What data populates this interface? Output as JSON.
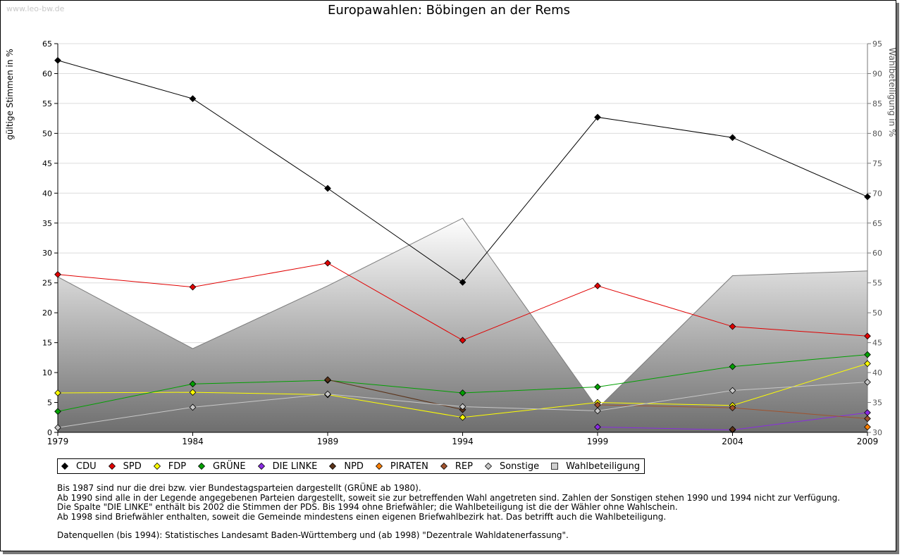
{
  "watermark": "www.leo-bw.de",
  "chart_data": {
    "type": "line",
    "title": "Europawahlen: Böbingen an der Rems",
    "ylabel": "gültige Stimmen in %",
    "y2label": "Wahlbeteiligung in %",
    "x": [
      "1979",
      "1984",
      "1989",
      "1994",
      "1999",
      "2004",
      "2009"
    ],
    "ylim": [
      0,
      65
    ],
    "y2lim": [
      30,
      95
    ],
    "yticks": [
      0,
      5,
      10,
      15,
      20,
      25,
      30,
      35,
      40,
      45,
      50,
      55,
      60,
      65
    ],
    "y2ticks": [
      30,
      35,
      40,
      45,
      50,
      55,
      60,
      65,
      70,
      75,
      80,
      85,
      90,
      95
    ],
    "grid": true,
    "legend_position": "bottom",
    "series": [
      {
        "name": "CDU",
        "color": "#000000",
        "values": [
          62.2,
          55.8,
          40.8,
          25.1,
          52.7,
          49.3,
          39.4
        ]
      },
      {
        "name": "SPD",
        "color": "#e00000",
        "values": [
          26.4,
          24.3,
          28.3,
          15.4,
          24.5,
          17.7,
          16.1
        ]
      },
      {
        "name": "FDP",
        "color": "#ffff00",
        "values": [
          6.6,
          6.7,
          6.3,
          2.5,
          5.0,
          4.5,
          11.5
        ]
      },
      {
        "name": "GRÜNE",
        "color": "#00a000",
        "values": [
          3.5,
          8.1,
          8.7,
          6.6,
          7.6,
          11.0,
          13.0
        ]
      },
      {
        "name": "DIE LINKE",
        "color": "#8a2be2",
        "values": [
          null,
          null,
          null,
          null,
          0.9,
          0.4,
          3.3
        ]
      },
      {
        "name": "NPD",
        "color": "#5a3218",
        "values": [
          null,
          null,
          8.8,
          3.8,
          null,
          0.5,
          null
        ]
      },
      {
        "name": "PIRATEN",
        "color": "#ff7f00",
        "values": [
          null,
          null,
          null,
          null,
          null,
          null,
          0.9
        ]
      },
      {
        "name": "REP",
        "color": "#a0522d",
        "values": [
          null,
          null,
          null,
          null,
          4.6,
          4.1,
          2.3
        ]
      },
      {
        "name": "Sonstige",
        "color": "#c8c8c8",
        "values": [
          0.8,
          4.2,
          6.4,
          4.3,
          3.6,
          7.0,
          8.4
        ]
      }
    ],
    "turnout": {
      "name": "Wahlbeteiligung",
      "values": [
        56.0,
        44.0,
        54.5,
        65.8,
        34.0,
        56.2,
        57.0
      ]
    }
  },
  "notes": [
    "Bis 1987 sind nur die drei bzw. vier Bundestagsparteien dargestellt (GRÜNE ab 1980).",
    "Ab 1990 sind alle in der Legende angegebenen Parteien dargestellt, soweit sie zur betreffenden Wahl angetreten sind. Zahlen der Sonstigen stehen 1990 und 1994 nicht zur Verfügung.",
    "Die Spalte \"DIE LINKE\" enthält bis 2002 die Stimmen der PDS. Bis 1994 ohne Briefwähler; die Wahlbeteiligung ist die der Wähler ohne Wahlschein.",
    "Ab 1998 sind Briefwähler enthalten, soweit die Gemeinde mindestens einen eigenen Briefwahlbezirk hat. Das betrifft auch die Wahlbeteiligung."
  ],
  "sources": "Datenquellen (bis 1994): Statistisches Landesamt Baden-Württemberg und (ab 1998) \"Dezentrale Wahldatenerfassung\"."
}
